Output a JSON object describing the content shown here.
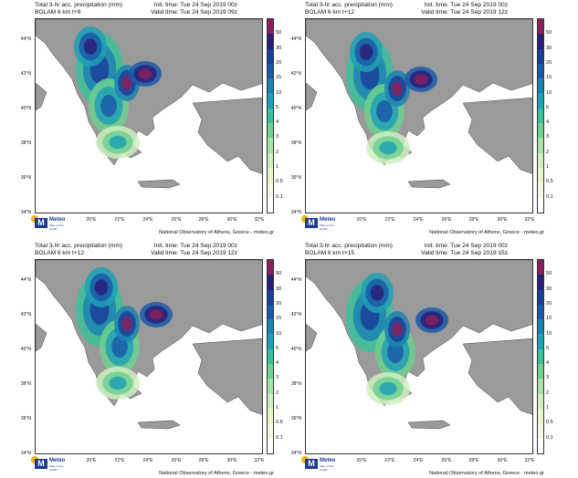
{
  "colorbar": {
    "labels": [
      "50",
      "30",
      "20",
      "15",
      "10",
      "5",
      "4",
      "3",
      "2",
      "1",
      "0.5",
      "0.1"
    ],
    "colors": [
      "#8a1f5a",
      "#2a1f78",
      "#1a3f9a",
      "#1a5aa8",
      "#1c82b0",
      "#20a0b4",
      "#3cbf9a",
      "#6fd08f",
      "#a7e3a3",
      "#cfeec0",
      "#eaf6c6",
      "#f6f9e2",
      "#ffffff"
    ]
  },
  "colors": {
    "sea": "#ffffff",
    "land": "#9a9a9a",
    "border": "#444444"
  },
  "lat_labels": [
    "44°N",
    "42°N",
    "40°N",
    "38°N",
    "36°N",
    "34°N"
  ],
  "lon_labels": [
    "20°E",
    "22°E",
    "24°E",
    "26°E",
    "28°E",
    "30°E",
    "32°E"
  ],
  "logo": {
    "name": "Meteo",
    "slogan": "Take on the clouds"
  },
  "credit": "National Observatory of Athens, Greece - meteo.gr",
  "panels": [
    {
      "title": "Total 3-hr acc. precipitation (mm)",
      "model": "BOLAM 6 km t+9",
      "init": "Init. time: Tue 24 Sep 2019 00z",
      "valid": "Valid time: Tue 24 Sep 2019 09z"
    },
    {
      "title": "Total 3-hr acc. precipitation (mm)",
      "model": "BOLAM 6 km t+12",
      "init": "Init. time: Tue 24 Sep 2019 00z",
      "valid": "Valid time: Tue 24 Sep 2019 12z"
    },
    {
      "title": "Total 3-hr acc. precipitation (mm)",
      "model": "BOLAM 6 km t+12",
      "init": "Init. time: Tue 24 Sep 2019 00z",
      "valid": "Valid time: Tue 24 Sep 2019 12z"
    },
    {
      "title": "Total 3-hr acc. precipitation (mm)",
      "model": "BOLAM 6 km t+15",
      "init": "Init. time: Tue 24 Sep 2019 00z",
      "valid": "Valid time: Tue 24 Sep 2019 15z"
    }
  ]
}
